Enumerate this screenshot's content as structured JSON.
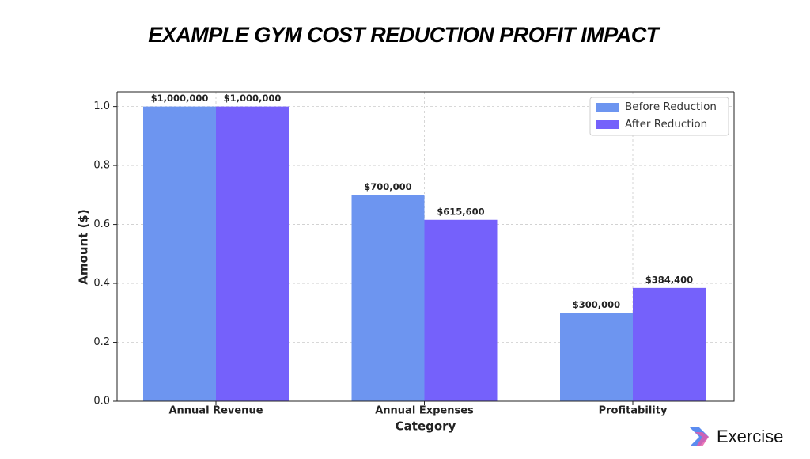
{
  "chart_data": {
    "type": "bar",
    "title": "EXAMPLE GYM COST REDUCTION PROFIT IMPACT",
    "xlabel": "Category",
    "ylabel": "Amount ($)",
    "categories": [
      "Annual Revenue",
      "Annual Expenses",
      "Profitability"
    ],
    "series": [
      {
        "name": "Before Reduction",
        "color": "#6d95f0",
        "values": [
          1000000,
          700000,
          300000
        ],
        "value_labels": [
          "$1,000,000",
          "$700,000",
          "$300,000"
        ]
      },
      {
        "name": "After Reduction",
        "color": "#7561fb",
        "values": [
          1000000,
          615600,
          384400
        ],
        "value_labels": [
          "$1,000,000",
          "$615,600",
          "$384,400"
        ]
      }
    ],
    "ylim": [
      0,
      1050000
    ],
    "yticks": [
      {
        "value": 0,
        "label": "0.0"
      },
      {
        "value": 200000,
        "label": "0.2"
      },
      {
        "value": 400000,
        "label": "0.4"
      },
      {
        "value": 600000,
        "label": "0.6"
      },
      {
        "value": 800000,
        "label": "0.8"
      },
      {
        "value": 1000000,
        "label": "1.0"
      }
    ],
    "grid": true,
    "legend": "upper right"
  },
  "brand": {
    "name": "Exercise"
  }
}
